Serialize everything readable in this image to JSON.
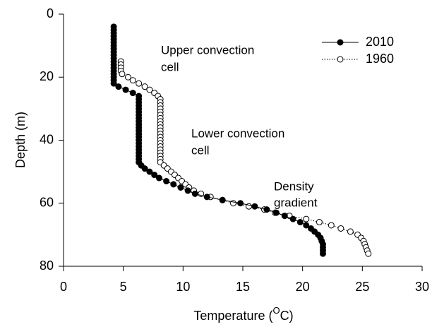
{
  "chart_data": {
    "type": "line",
    "x_label": {
      "text": "Temperature (",
      "superscript": "O",
      "suffix": "C)"
    },
    "y_label": "Depth (m)",
    "annotations": [
      [
        "Upper convection",
        "cell"
      ],
      [
        "Lower convection",
        "cell"
      ],
      [
        "Density",
        "gradient"
      ]
    ],
    "xlim": [
      0,
      30
    ],
    "xticks": [
      0,
      5,
      10,
      15,
      20,
      25,
      30
    ],
    "ylim": [
      0,
      80
    ],
    "yticks": [
      0,
      20,
      40,
      60,
      80
    ],
    "y_inverted": true,
    "legend": "upper right",
    "series": [
      {
        "name": "2010",
        "color": "#000000",
        "marker": "filled",
        "linestyle": "solid",
        "x": [
          4.2,
          4.2,
          4.2,
          4.2,
          4.2,
          4.2,
          4.2,
          4.2,
          4.2,
          4.2,
          4.2,
          4.2,
          4.2,
          4.2,
          4.2,
          4.2,
          4.2,
          4.2,
          4.2,
          4.6,
          5.2,
          5.8,
          6.3,
          6.3,
          6.3,
          6.3,
          6.3,
          6.3,
          6.3,
          6.3,
          6.3,
          6.3,
          6.3,
          6.3,
          6.3,
          6.3,
          6.3,
          6.3,
          6.3,
          6.3,
          6.3,
          6.3,
          6.3,
          6.3,
          6.5,
          6.8,
          7.2,
          7.6,
          8.0,
          8.6,
          9.2,
          9.8,
          10.4,
          11.0,
          12.0,
          13.3,
          14.8,
          16.0,
          17.0,
          17.8,
          18.5,
          19.2,
          19.8,
          20.3,
          20.7,
          21.0,
          21.3,
          21.5,
          21.6,
          21.7,
          21.7,
          21.7,
          21.7
        ],
        "values": [
          4,
          5,
          6,
          7,
          8,
          9,
          10,
          11,
          12,
          13,
          14,
          15,
          16,
          17,
          18,
          19,
          20,
          21,
          22,
          23,
          24,
          25,
          26,
          27,
          28,
          29,
          30,
          31,
          32,
          33,
          34,
          35,
          36,
          37,
          38,
          39,
          40,
          41,
          42,
          43,
          44,
          45,
          46,
          47,
          48,
          49,
          50,
          51,
          52,
          53,
          54,
          55,
          56,
          57,
          58,
          59,
          60,
          61,
          62,
          63,
          64,
          65,
          66,
          67,
          68,
          69,
          70,
          71,
          72,
          73,
          74,
          75,
          76
        ]
      },
      {
        "name": "1960",
        "color": "#000000",
        "marker": "open",
        "linestyle": "dotted",
        "x": [
          4.8,
          4.8,
          4.8,
          4.8,
          4.9,
          5.4,
          5.8,
          6.3,
          6.8,
          7.2,
          7.6,
          7.9,
          8.1,
          8.1,
          8.1,
          8.1,
          8.1,
          8.1,
          8.1,
          8.1,
          8.1,
          8.1,
          8.1,
          8.1,
          8.1,
          8.1,
          8.1,
          8.1,
          8.1,
          8.1,
          8.1,
          8.1,
          8.1,
          8.4,
          8.7,
          9.0,
          9.3,
          9.6,
          9.9,
          10.2,
          10.5,
          10.9,
          11.5,
          12.3,
          13.3,
          14.2,
          15.5,
          16.8,
          17.7,
          18.9,
          20.3,
          21.4,
          22.4,
          23.2,
          24.0,
          24.6,
          24.9,
          25.1,
          25.2,
          25.3,
          25.4,
          25.5
        ],
        "values": [
          15,
          16,
          17,
          18,
          19,
          20,
          21,
          22,
          23,
          24,
          25,
          26,
          27,
          28,
          29,
          30,
          31,
          32,
          33,
          34,
          35,
          36,
          37,
          38,
          39,
          40,
          41,
          42,
          43,
          44,
          45,
          46,
          47,
          48,
          49,
          50,
          51,
          52,
          53,
          54,
          55,
          56,
          57,
          58,
          59,
          60,
          61,
          62,
          63,
          64,
          65,
          66,
          67,
          68,
          69,
          70,
          71,
          72,
          73,
          74,
          75,
          76
        ]
      }
    ]
  }
}
